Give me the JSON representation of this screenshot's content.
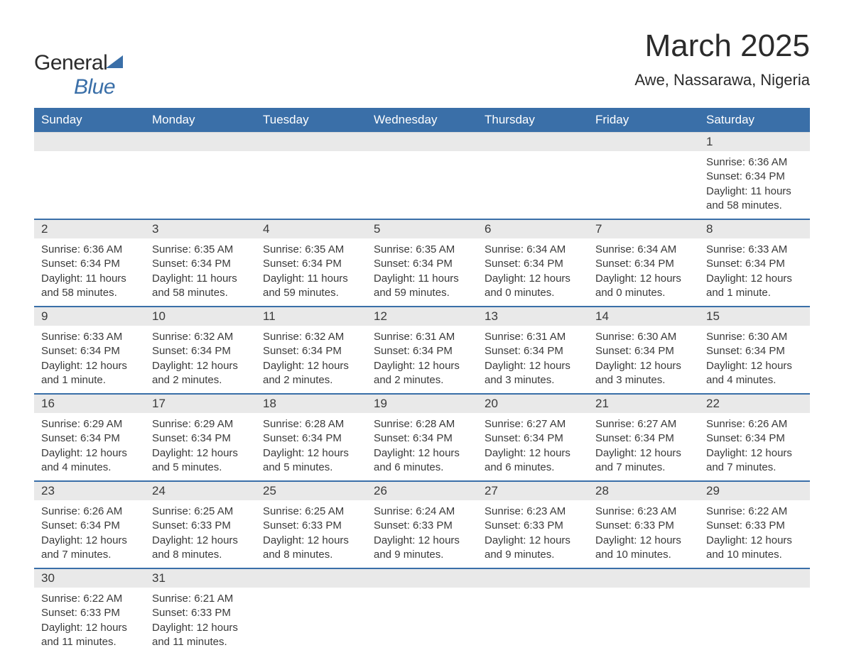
{
  "header": {
    "logo_general": "General",
    "logo_blue": "Blue",
    "month_title": "March 2025",
    "location": "Awe, Nassarawa, Nigeria"
  },
  "colors": {
    "header_bg": "#3a6fa8",
    "header_text": "#ffffff",
    "daynum_bg": "#e9e9e9",
    "row_divider": "#3a6fa8",
    "text": "#3a3a3a",
    "page_bg": "#ffffff"
  },
  "typography": {
    "month_title_fontsize": 44,
    "location_fontsize": 22,
    "dow_fontsize": 17,
    "daynum_fontsize": 17,
    "body_fontsize": 15
  },
  "dow": [
    "Sunday",
    "Monday",
    "Tuesday",
    "Wednesday",
    "Thursday",
    "Friday",
    "Saturday"
  ],
  "weeks": [
    [
      null,
      null,
      null,
      null,
      null,
      null,
      {
        "n": "1",
        "sunrise": "Sunrise: 6:36 AM",
        "sunset": "Sunset: 6:34 PM",
        "daylight": "Daylight: 11 hours and 58 minutes."
      }
    ],
    [
      {
        "n": "2",
        "sunrise": "Sunrise: 6:36 AM",
        "sunset": "Sunset: 6:34 PM",
        "daylight": "Daylight: 11 hours and 58 minutes."
      },
      {
        "n": "3",
        "sunrise": "Sunrise: 6:35 AM",
        "sunset": "Sunset: 6:34 PM",
        "daylight": "Daylight: 11 hours and 58 minutes."
      },
      {
        "n": "4",
        "sunrise": "Sunrise: 6:35 AM",
        "sunset": "Sunset: 6:34 PM",
        "daylight": "Daylight: 11 hours and 59 minutes."
      },
      {
        "n": "5",
        "sunrise": "Sunrise: 6:35 AM",
        "sunset": "Sunset: 6:34 PM",
        "daylight": "Daylight: 11 hours and 59 minutes."
      },
      {
        "n": "6",
        "sunrise": "Sunrise: 6:34 AM",
        "sunset": "Sunset: 6:34 PM",
        "daylight": "Daylight: 12 hours and 0 minutes."
      },
      {
        "n": "7",
        "sunrise": "Sunrise: 6:34 AM",
        "sunset": "Sunset: 6:34 PM",
        "daylight": "Daylight: 12 hours and 0 minutes."
      },
      {
        "n": "8",
        "sunrise": "Sunrise: 6:33 AM",
        "sunset": "Sunset: 6:34 PM",
        "daylight": "Daylight: 12 hours and 1 minute."
      }
    ],
    [
      {
        "n": "9",
        "sunrise": "Sunrise: 6:33 AM",
        "sunset": "Sunset: 6:34 PM",
        "daylight": "Daylight: 12 hours and 1 minute."
      },
      {
        "n": "10",
        "sunrise": "Sunrise: 6:32 AM",
        "sunset": "Sunset: 6:34 PM",
        "daylight": "Daylight: 12 hours and 2 minutes."
      },
      {
        "n": "11",
        "sunrise": "Sunrise: 6:32 AM",
        "sunset": "Sunset: 6:34 PM",
        "daylight": "Daylight: 12 hours and 2 minutes."
      },
      {
        "n": "12",
        "sunrise": "Sunrise: 6:31 AM",
        "sunset": "Sunset: 6:34 PM",
        "daylight": "Daylight: 12 hours and 2 minutes."
      },
      {
        "n": "13",
        "sunrise": "Sunrise: 6:31 AM",
        "sunset": "Sunset: 6:34 PM",
        "daylight": "Daylight: 12 hours and 3 minutes."
      },
      {
        "n": "14",
        "sunrise": "Sunrise: 6:30 AM",
        "sunset": "Sunset: 6:34 PM",
        "daylight": "Daylight: 12 hours and 3 minutes."
      },
      {
        "n": "15",
        "sunrise": "Sunrise: 6:30 AM",
        "sunset": "Sunset: 6:34 PM",
        "daylight": "Daylight: 12 hours and 4 minutes."
      }
    ],
    [
      {
        "n": "16",
        "sunrise": "Sunrise: 6:29 AM",
        "sunset": "Sunset: 6:34 PM",
        "daylight": "Daylight: 12 hours and 4 minutes."
      },
      {
        "n": "17",
        "sunrise": "Sunrise: 6:29 AM",
        "sunset": "Sunset: 6:34 PM",
        "daylight": "Daylight: 12 hours and 5 minutes."
      },
      {
        "n": "18",
        "sunrise": "Sunrise: 6:28 AM",
        "sunset": "Sunset: 6:34 PM",
        "daylight": "Daylight: 12 hours and 5 minutes."
      },
      {
        "n": "19",
        "sunrise": "Sunrise: 6:28 AM",
        "sunset": "Sunset: 6:34 PM",
        "daylight": "Daylight: 12 hours and 6 minutes."
      },
      {
        "n": "20",
        "sunrise": "Sunrise: 6:27 AM",
        "sunset": "Sunset: 6:34 PM",
        "daylight": "Daylight: 12 hours and 6 minutes."
      },
      {
        "n": "21",
        "sunrise": "Sunrise: 6:27 AM",
        "sunset": "Sunset: 6:34 PM",
        "daylight": "Daylight: 12 hours and 7 minutes."
      },
      {
        "n": "22",
        "sunrise": "Sunrise: 6:26 AM",
        "sunset": "Sunset: 6:34 PM",
        "daylight": "Daylight: 12 hours and 7 minutes."
      }
    ],
    [
      {
        "n": "23",
        "sunrise": "Sunrise: 6:26 AM",
        "sunset": "Sunset: 6:34 PM",
        "daylight": "Daylight: 12 hours and 7 minutes."
      },
      {
        "n": "24",
        "sunrise": "Sunrise: 6:25 AM",
        "sunset": "Sunset: 6:33 PM",
        "daylight": "Daylight: 12 hours and 8 minutes."
      },
      {
        "n": "25",
        "sunrise": "Sunrise: 6:25 AM",
        "sunset": "Sunset: 6:33 PM",
        "daylight": "Daylight: 12 hours and 8 minutes."
      },
      {
        "n": "26",
        "sunrise": "Sunrise: 6:24 AM",
        "sunset": "Sunset: 6:33 PM",
        "daylight": "Daylight: 12 hours and 9 minutes."
      },
      {
        "n": "27",
        "sunrise": "Sunrise: 6:23 AM",
        "sunset": "Sunset: 6:33 PM",
        "daylight": "Daylight: 12 hours and 9 minutes."
      },
      {
        "n": "28",
        "sunrise": "Sunrise: 6:23 AM",
        "sunset": "Sunset: 6:33 PM",
        "daylight": "Daylight: 12 hours and 10 minutes."
      },
      {
        "n": "29",
        "sunrise": "Sunrise: 6:22 AM",
        "sunset": "Sunset: 6:33 PM",
        "daylight": "Daylight: 12 hours and 10 minutes."
      }
    ],
    [
      {
        "n": "30",
        "sunrise": "Sunrise: 6:22 AM",
        "sunset": "Sunset: 6:33 PM",
        "daylight": "Daylight: 12 hours and 11 minutes."
      },
      {
        "n": "31",
        "sunrise": "Sunrise: 6:21 AM",
        "sunset": "Sunset: 6:33 PM",
        "daylight": "Daylight: 12 hours and 11 minutes."
      },
      null,
      null,
      null,
      null,
      null
    ]
  ]
}
